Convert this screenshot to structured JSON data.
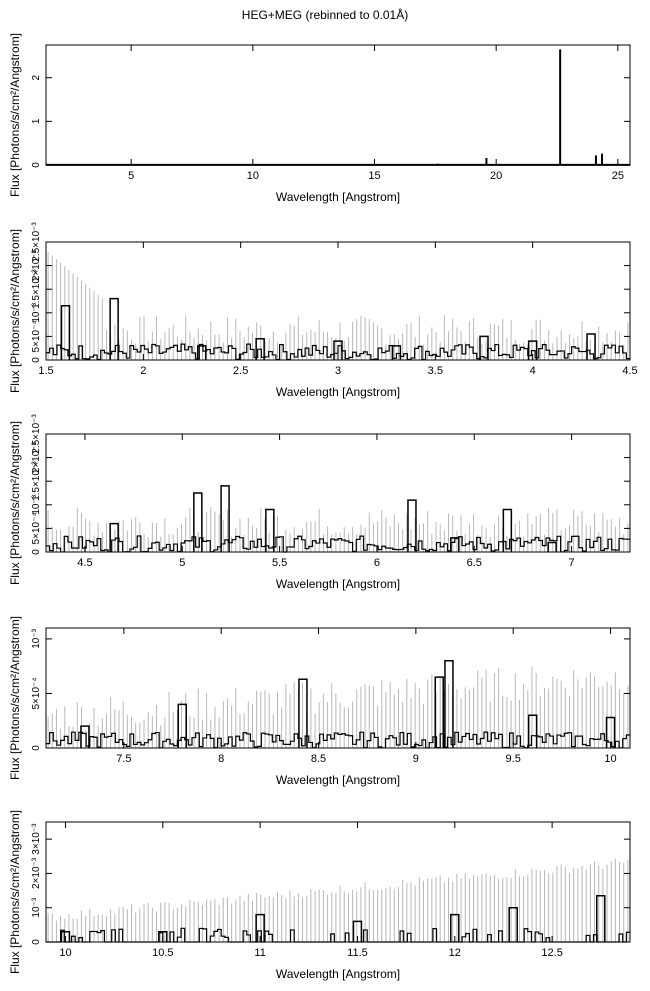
{
  "title": "HEG+MEG (rebinned to 0.01Å)",
  "colors": {
    "data": "#000000",
    "error": "#b8b8b8",
    "axis": "#000000"
  },
  "chart_data": [
    {
      "type": "line",
      "xlabel": "Wavelength [Angstrom]",
      "ylabel": "Flux [Photons/s/cm²/Angstrom]",
      "xlim": [
        1.5,
        25.5
      ],
      "ylim": [
        0,
        2.75
      ],
      "xticks": [
        5,
        10,
        15,
        20,
        25
      ],
      "xtick_labels": [
        "5",
        "10",
        "15",
        "20",
        "25"
      ],
      "yticks": [
        0,
        1,
        2
      ],
      "ytick_labels": [
        "0",
        "1",
        "2"
      ],
      "series": [
        {
          "x": [
            1.5,
            5,
            10,
            15,
            17.6,
            19.6,
            20,
            22.6,
            22.63,
            22.7,
            24.0,
            24.1,
            24.3,
            24.35,
            25.5
          ],
          "y": [
            0.004,
            0.004,
            0.004,
            0.004,
            0.03,
            0.16,
            0.006,
            0.006,
            2.65,
            0.006,
            0.006,
            0.22,
            0.006,
            0.26,
            0.006
          ]
        }
      ]
    },
    {
      "type": "line",
      "xlabel": "Wavelength [Angstrom]",
      "ylabel": "Flux [Photons/s/cm²/Angstrom]",
      "xlim": [
        1.5,
        4.5
      ],
      "ylim": [
        0,
        0.0025
      ],
      "xticks": [
        1.5,
        2,
        2.5,
        3,
        3.5,
        4,
        4.5
      ],
      "xtick_labels": [
        "1.5",
        "2",
        "2.5",
        "3",
        "3.5",
        "4",
        "4.5"
      ],
      "yticks": [
        0,
        0.0005,
        0.001,
        0.0015,
        0.002,
        0.0025
      ],
      "ytick_labels": [
        "0",
        "5×10⁻⁴",
        "10⁻³",
        "1.5×10⁻³",
        "2×10⁻³",
        "2.5×10⁻³"
      ],
      "series": [
        {
          "x": [
            1.6,
            1.85,
            2.3,
            2.6,
            3.0,
            3.3,
            3.75,
            4.0,
            4.3
          ],
          "y": [
            0.00115,
            0.0013,
            0.0003,
            0.00045,
            0.0004,
            0.0003,
            0.0005,
            0.0004,
            0.00055
          ]
        }
      ]
    },
    {
      "type": "line",
      "xlabel": "Wavelength [Angstrom]",
      "ylabel": "Flux [Photons/s/cm²/Angstrom]",
      "xlim": [
        4.3,
        7.3
      ],
      "ylim": [
        0,
        0.0025
      ],
      "xticks": [
        4.5,
        5,
        5.5,
        6,
        6.5,
        7
      ],
      "xtick_labels": [
        "4.5",
        "5",
        "5.5",
        "6",
        "6.5",
        "7"
      ],
      "yticks": [
        0,
        0.0005,
        0.001,
        0.0015,
        0.002,
        0.0025
      ],
      "ytick_labels": [
        "0",
        "5×10⁻⁴",
        "10⁻³",
        "1.5×10⁻³",
        "2×10⁻³",
        "2.5×10⁻³"
      ],
      "series": [
        {
          "x": [
            4.65,
            5.08,
            5.22,
            5.45,
            6.18,
            6.4,
            6.67,
            6.9
          ],
          "y": [
            0.0006,
            0.00125,
            0.0014,
            0.0009,
            0.0011,
            0.0003,
            0.0009,
            0.0002
          ]
        }
      ]
    },
    {
      "type": "line",
      "xlabel": "Wavelength [Angstrom]",
      "ylabel": "Flux [Photons/s/cm²/Angstrom]",
      "xlim": [
        7.1,
        10.1
      ],
      "ylim": [
        0,
        0.0011
      ],
      "xticks": [
        7.5,
        8,
        8.5,
        9,
        9.5,
        10
      ],
      "xtick_labels": [
        "7.5",
        "8",
        "8.5",
        "9",
        "9.5",
        "10"
      ],
      "yticks": [
        0,
        0.0005,
        0.001
      ],
      "ytick_labels": [
        "0",
        "5×10⁻⁴",
        "10⁻³"
      ],
      "series": [
        {
          "x": [
            7.3,
            7.8,
            8.42,
            9.12,
            9.17,
            9.6,
            10.0
          ],
          "y": [
            0.0002,
            0.0004,
            0.00063,
            0.00065,
            0.0008,
            0.0003,
            0.00028
          ]
        }
      ]
    },
    {
      "type": "line",
      "xlabel": "Wavelength [Angstrom]",
      "ylabel": "Flux [Photons/s/cm²/Angstrom]",
      "xlim": [
        9.9,
        12.9
      ],
      "ylim": [
        0,
        0.0035
      ],
      "xticks": [
        10,
        10.5,
        11,
        11.5,
        12,
        12.5
      ],
      "xtick_labels": [
        "10",
        "10.5",
        "11",
        "11.5",
        "12",
        "12.5"
      ],
      "yticks": [
        0,
        0.001,
        0.002,
        0.003
      ],
      "ytick_labels": [
        "0",
        "10⁻³",
        "2×10⁻³",
        "3×10⁻³"
      ],
      "series": [
        {
          "x": [
            10.0,
            10.5,
            11.0,
            11.5,
            12.0,
            12.3,
            12.75
          ],
          "y": [
            0.0003,
            0.0003,
            0.0008,
            0.0006,
            0.0008,
            0.001,
            0.00135
          ]
        }
      ]
    }
  ]
}
